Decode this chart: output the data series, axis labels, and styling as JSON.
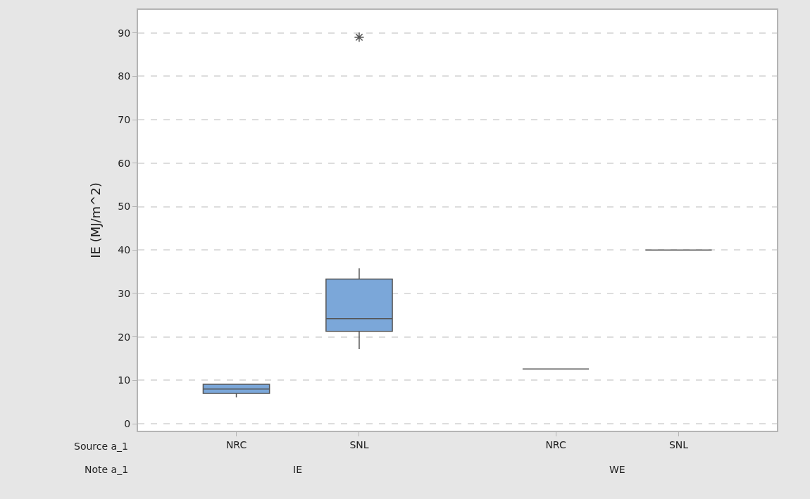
{
  "chart_data": {
    "type": "box",
    "ylabel": "IE (MJ/m^2)",
    "xlabel": "Source a_1",
    "categories": [
      "NRC",
      "SNL",
      "NRC",
      "SNL"
    ],
    "boxes": [
      {
        "low": 6.1,
        "q1": 7.0,
        "median": 8.0,
        "q3": 9.1,
        "high": 9.1
      },
      {
        "low": 17.2,
        "q1": 21.3,
        "median": 24.2,
        "q3": 33.3,
        "high": 35.8,
        "outliers": [
          89
        ]
      },
      {
        "low": 12.6,
        "q1": 12.6,
        "median": 12.6,
        "q3": 12.6,
        "high": 12.6
      },
      {
        "low": 40,
        "q1": 40,
        "median": 40,
        "q3": 40,
        "high": 40
      }
    ],
    "colors": [
      "#7ba7d9",
      "#7ba7d9",
      "#555555",
      "#555555"
    ],
    "annotations": [
      "Note a_1",
      "IE",
      "WE"
    ],
    "ylim": [
      -1.6,
      95.3
    ],
    "yticks": [
      0,
      10,
      20,
      30,
      40,
      50,
      60,
      70,
      80,
      90
    ],
    "grid": "y"
  }
}
